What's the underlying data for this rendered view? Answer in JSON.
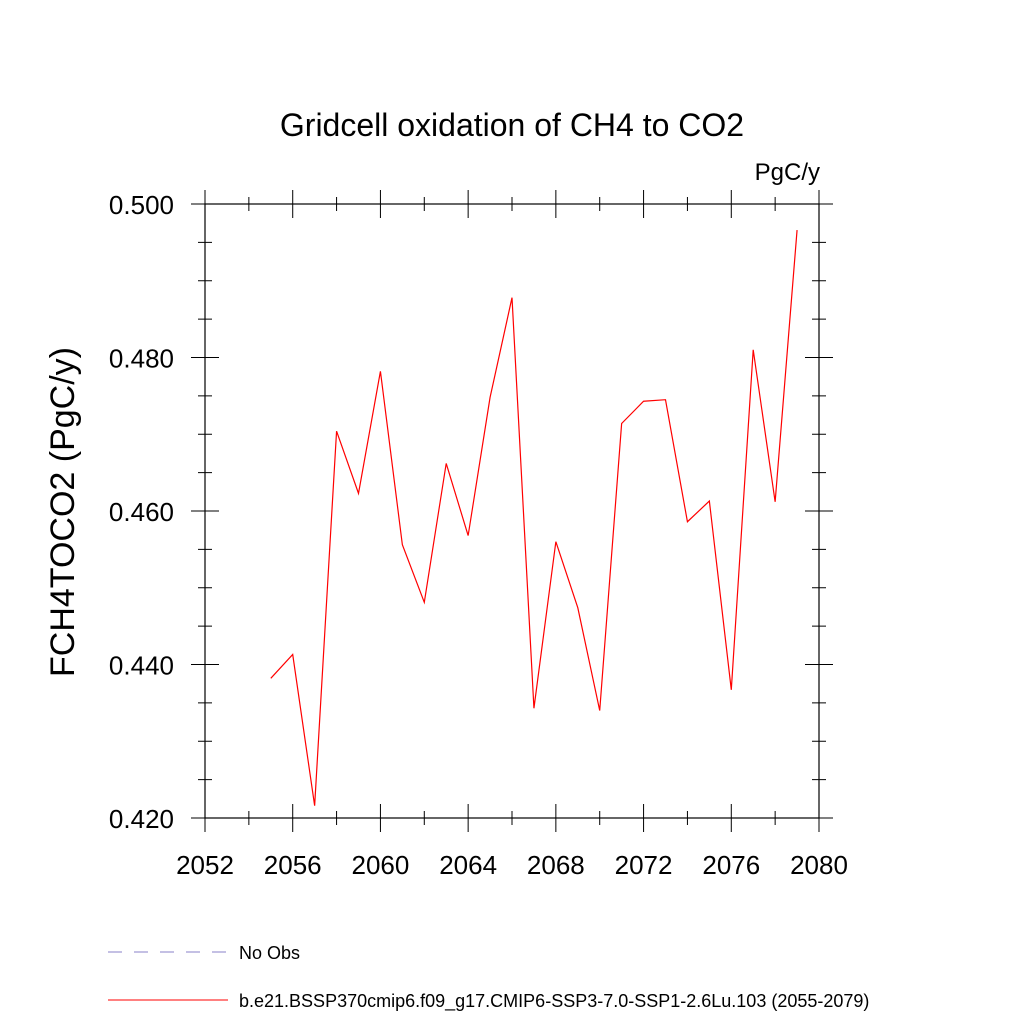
{
  "chart_data": {
    "type": "line",
    "title": "Gridcell oxidation of CH4 to CO2",
    "units": "PgC/y",
    "ylabel": "FCH4TOCO2  (PgC/y)",
    "xlabel": "",
    "xlim": [
      2052,
      2080
    ],
    "ylim": [
      0.42,
      0.5
    ],
    "x_ticks": [
      2052,
      2056,
      2060,
      2064,
      2068,
      2072,
      2076,
      2080
    ],
    "x_tick_labels": [
      "2052",
      "2056",
      "2060",
      "2064",
      "2068",
      "2072",
      "2076",
      "2080"
    ],
    "x_minor_step": 2,
    "y_ticks": [
      0.42,
      0.44,
      0.46,
      0.48,
      0.5
    ],
    "y_tick_labels": [
      "0.420",
      "0.440",
      "0.460",
      "0.480",
      "0.500"
    ],
    "y_minor_step": 0.005,
    "grid": false,
    "series": [
      {
        "name": "b.e21.BSSP370cmip6.f09_g17.CMIP6-SSP3-7.0-SSP1-2.6Lu.103 (2055-2079)",
        "color": "#ff0000",
        "x": [
          2055,
          2056,
          2057,
          2058,
          2059,
          2060,
          2061,
          2062,
          2063,
          2064,
          2065,
          2066,
          2067,
          2068,
          2069,
          2070,
          2071,
          2072,
          2073,
          2074,
          2075,
          2076,
          2077,
          2078,
          2079
        ],
        "values": [
          0.4382,
          0.4413,
          0.4216,
          0.4704,
          0.4623,
          0.4782,
          0.4556,
          0.4481,
          0.4662,
          0.4568,
          0.4748,
          0.4878,
          0.4343,
          0.456,
          0.4474,
          0.434,
          0.4714,
          0.4743,
          0.4745,
          0.4586,
          0.4613,
          0.4367,
          0.481,
          0.4612,
          0.4966
        ]
      }
    ],
    "legend": {
      "placement": "bottom-left",
      "entries": [
        {
          "label": "No Obs",
          "style": "dashed",
          "color": "#8a80c8"
        },
        {
          "label": "b.e21.BSSP370cmip6.f09_g17.CMIP6-SSP3-7.0-SSP1-2.6Lu.103 (2055-2079)",
          "style": "solid",
          "color": "#ff0000"
        }
      ]
    }
  }
}
